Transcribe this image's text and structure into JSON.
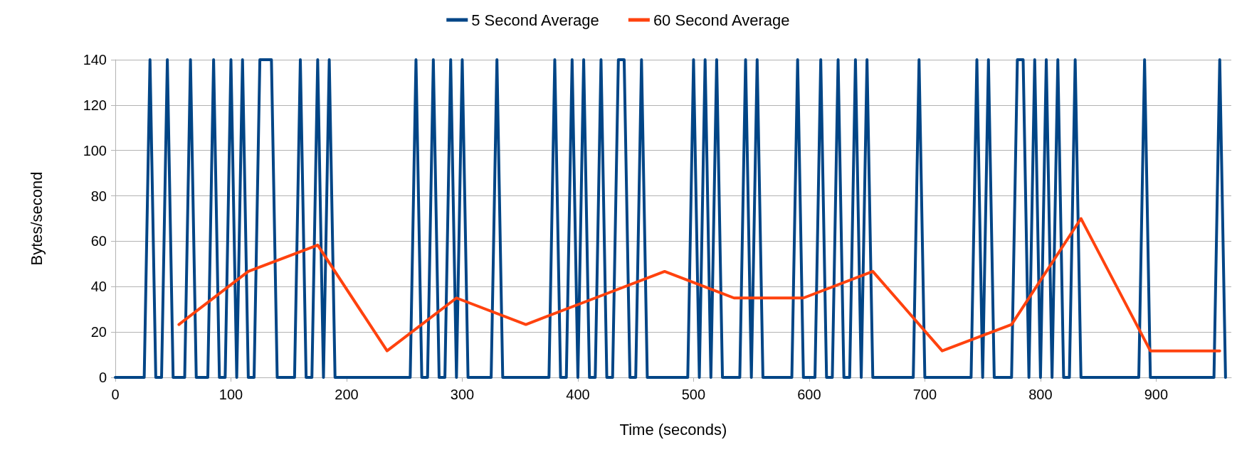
{
  "chart_data": {
    "type": "line",
    "xlabel": "Time (seconds)",
    "ylabel": "Bytes/second",
    "xlim": [
      0,
      965
    ],
    "xticks": [
      0,
      100,
      200,
      300,
      400,
      500,
      600,
      700,
      800,
      900
    ],
    "ylim": [
      0,
      140
    ],
    "yticks": [
      0,
      20,
      40,
      60,
      80,
      100,
      120,
      140
    ],
    "grid": "y",
    "legend": "top",
    "marker": "none",
    "line_style": "solid",
    "series": [
      {
        "name": "5 Second Average",
        "color": "#004586",
        "x": [
          0,
          5,
          10,
          15,
          20,
          25,
          30,
          35,
          40,
          45,
          50,
          55,
          60,
          65,
          70,
          75,
          80,
          85,
          90,
          95,
          100,
          105,
          110,
          115,
          120,
          125,
          130,
          135,
          140,
          145,
          150,
          155,
          160,
          165,
          170,
          175,
          180,
          185,
          190,
          195,
          200,
          205,
          210,
          215,
          220,
          225,
          230,
          235,
          240,
          245,
          250,
          255,
          260,
          265,
          270,
          275,
          280,
          285,
          290,
          295,
          300,
          305,
          310,
          315,
          320,
          325,
          330,
          335,
          340,
          345,
          350,
          355,
          360,
          365,
          370,
          375,
          380,
          385,
          390,
          395,
          400,
          405,
          410,
          415,
          420,
          425,
          430,
          435,
          440,
          445,
          450,
          455,
          460,
          465,
          470,
          475,
          480,
          485,
          490,
          495,
          500,
          505,
          510,
          515,
          520,
          525,
          530,
          535,
          540,
          545,
          550,
          555,
          560,
          565,
          570,
          575,
          580,
          585,
          590,
          595,
          600,
          605,
          610,
          615,
          620,
          625,
          630,
          635,
          640,
          645,
          650,
          655,
          660,
          665,
          670,
          675,
          680,
          685,
          690,
          695,
          700,
          705,
          710,
          715,
          720,
          725,
          730,
          735,
          740,
          745,
          750,
          755,
          760,
          765,
          770,
          775,
          780,
          785,
          790,
          795,
          800,
          805,
          810,
          815,
          820,
          825,
          830,
          835,
          840,
          845,
          850,
          855,
          860,
          865,
          870,
          875,
          880,
          885,
          890,
          895,
          900,
          905,
          910,
          915,
          920,
          925,
          930,
          935,
          940,
          945,
          950,
          955,
          960
        ],
        "values": [
          0,
          0,
          0,
          0,
          0,
          0,
          140,
          0,
          0,
          140,
          0,
          0,
          0,
          140,
          0,
          0,
          0,
          140,
          0,
          0,
          140,
          0,
          140,
          0,
          0,
          140,
          140,
          140,
          0,
          0,
          0,
          0,
          140,
          0,
          0,
          140,
          0,
          140,
          0,
          0,
          0,
          0,
          0,
          0,
          0,
          0,
          0,
          0,
          0,
          0,
          0,
          0,
          140,
          0,
          0,
          140,
          0,
          0,
          140,
          0,
          140,
          0,
          0,
          0,
          0,
          0,
          140,
          0,
          0,
          0,
          0,
          0,
          0,
          0,
          0,
          0,
          140,
          0,
          0,
          140,
          0,
          140,
          0,
          0,
          140,
          0,
          0,
          140,
          140,
          0,
          0,
          140,
          0,
          0,
          0,
          0,
          0,
          0,
          0,
          0,
          140,
          0,
          140,
          0,
          140,
          0,
          0,
          0,
          0,
          140,
          0,
          140,
          0,
          0,
          0,
          0,
          0,
          0,
          140,
          0,
          0,
          0,
          140,
          0,
          0,
          140,
          0,
          0,
          140,
          0,
          140,
          0,
          0,
          0,
          0,
          0,
          0,
          0,
          0,
          140,
          0,
          0,
          0,
          0,
          0,
          0,
          0,
          0,
          0,
          140,
          0,
          140,
          0,
          0,
          0,
          0,
          140,
          140,
          0,
          140,
          0,
          140,
          0,
          140,
          0,
          0,
          140,
          0,
          0,
          0,
          0,
          0,
          0,
          0,
          0,
          0,
          0,
          0,
          140,
          0,
          0,
          0,
          0,
          0,
          0,
          0,
          0,
          0,
          0,
          0,
          0,
          140,
          0
        ]
      },
      {
        "name": "60 Second Average",
        "color": "#ff420e",
        "x": [
          55,
          115,
          175,
          235,
          295,
          355,
          415,
          475,
          535,
          595,
          655,
          715,
          775,
          835,
          895,
          955
        ],
        "values": [
          23.3,
          46.7,
          58.3,
          11.7,
          35,
          23.3,
          35,
          46.7,
          35,
          35,
          46.7,
          11.7,
          23.3,
          70,
          11.7,
          11.7
        ]
      }
    ]
  }
}
